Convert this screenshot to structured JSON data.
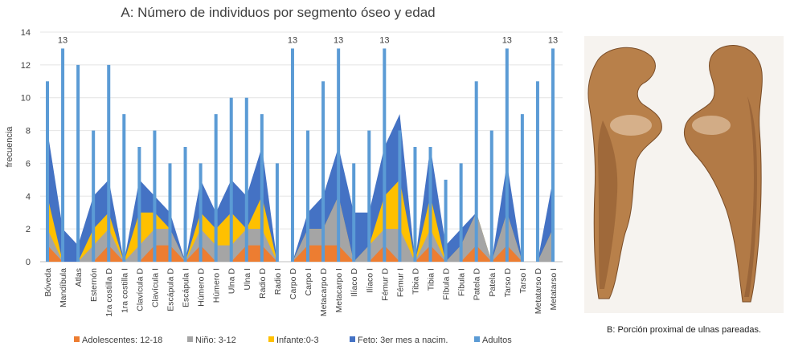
{
  "chart_data": {
    "type": "area+bar",
    "title": "A: Número de individuos por segmento óseo y edad",
    "ylabel": "frecuencia",
    "xlabel": "",
    "ylim": [
      0,
      14
    ],
    "yticks": [
      0,
      2,
      4,
      6,
      8,
      10,
      12,
      14
    ],
    "categories": [
      "Bóveda",
      "Mandíbula",
      "Atlas",
      "Esternón",
      "1ra costilla D",
      "1ra costilla I",
      "Clavícula D",
      "Clavícula I",
      "Escápula D",
      "Escápula I",
      "Húmero D",
      "Húmero I",
      "Ulna D",
      "Ulna I",
      "Radio D",
      "Radio I",
      "Carpo D",
      "Carpo I",
      "Metacarpo D",
      "Metacarpo I",
      "Ilíaco D",
      "Ilíaco I",
      "Fémur D",
      "Fémur I",
      "Tibia D",
      "Tibia I",
      "Fíbula D",
      "Fíbula I",
      "Patela D",
      "Patela I",
      "Tarso D",
      "Tarso I",
      "Metatarso D",
      "Metatarso I"
    ],
    "series": [
      {
        "name": "Adolescentes: 12-18",
        "type": "area",
        "color": "#ED7D31",
        "values": [
          1,
          0,
          0,
          0,
          1,
          0,
          0,
          1,
          1,
          0,
          1,
          0,
          0,
          1,
          1,
          0,
          0,
          1,
          1,
          1,
          0,
          0,
          1,
          0,
          0,
          1,
          0,
          0,
          1,
          0,
          1,
          0,
          0,
          0
        ]
      },
      {
        "name": "Niño: 3-12",
        "type": "area",
        "color": "#A5A5A5",
        "values": [
          1,
          0,
          0,
          1,
          1,
          0,
          1,
          1,
          1,
          0,
          1,
          1,
          1,
          1,
          1,
          0,
          0,
          1,
          1,
          3,
          0,
          1,
          1,
          2,
          0,
          1,
          0,
          1,
          2,
          0,
          2,
          0,
          0,
          2
        ]
      },
      {
        "name": "Infante:0-3",
        "type": "area",
        "color": "#FFC000",
        "values": [
          2,
          0,
          0,
          1,
          1,
          0,
          2,
          1,
          0,
          0,
          1,
          1,
          2,
          0,
          2,
          0,
          0,
          0,
          0,
          0,
          0,
          0,
          2,
          3,
          0,
          2,
          0,
          0,
          0,
          0,
          0,
          0,
          0,
          0
        ]
      },
      {
        "name": "Feto: 3er mes a nacim.",
        "type": "area",
        "color": "#4472C4",
        "values": [
          4,
          2,
          1,
          2,
          2,
          0,
          2,
          1,
          1,
          0,
          2,
          1,
          2,
          2,
          3,
          0,
          0,
          1,
          2,
          3,
          3,
          2,
          3,
          4,
          0,
          3,
          1,
          1,
          0,
          0,
          3,
          0,
          0,
          3
        ]
      },
      {
        "name": "Adultos",
        "type": "bar",
        "color": "#5B9BD5",
        "values": [
          11,
          13,
          12,
          8,
          12,
          9,
          7,
          8,
          6,
          7,
          6,
          9,
          10,
          10,
          9,
          6,
          13,
          8,
          11,
          13,
          6,
          8,
          13,
          8,
          7,
          7,
          5,
          6,
          11,
          8,
          13,
          9,
          11,
          13
        ]
      }
    ],
    "data_labels": [
      {
        "category": "Mandíbula",
        "text": "13"
      },
      {
        "category": "Carpo D",
        "text": "13"
      },
      {
        "category": "Metacarpo I",
        "text": "13"
      },
      {
        "category": "Fémur D",
        "text": "13"
      },
      {
        "category": "Tarso D",
        "text": "13"
      },
      {
        "category": "Metatarso I",
        "text": "13"
      }
    ]
  },
  "photo": {
    "caption": "B: Porción proximal de ulnas pareadas."
  }
}
